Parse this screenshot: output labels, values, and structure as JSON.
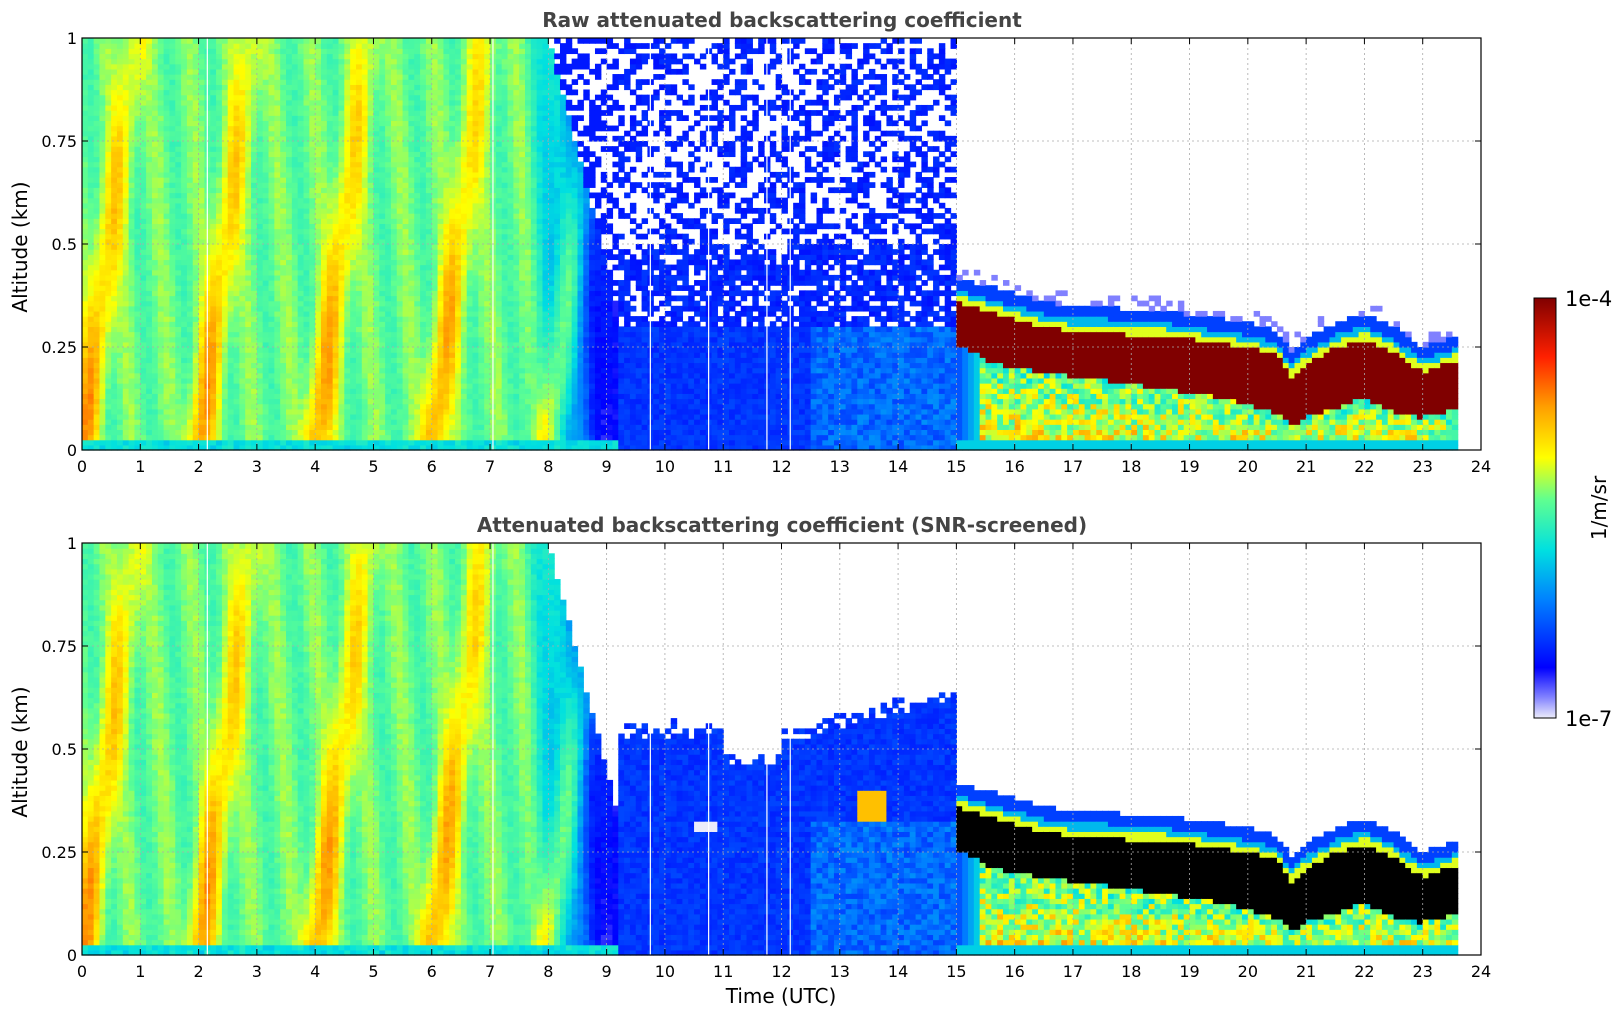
{
  "chart_data": [
    {
      "type": "heatmap",
      "title": "Raw attenuated backscattering coefficient",
      "xlabel": "",
      "ylabel": "Altitude (km)",
      "xlim": [
        0,
        24
      ],
      "ylim": [
        0,
        1
      ],
      "xticks": [
        "0",
        "1",
        "2",
        "3",
        "4",
        "5",
        "6",
        "7",
        "8",
        "9",
        "10",
        "11",
        "12",
        "13",
        "14",
        "15",
        "16",
        "17",
        "18",
        "19",
        "20",
        "21",
        "22",
        "23",
        "24"
      ],
      "yticks": [
        "0",
        "0.25",
        "0.5",
        "0.75",
        "1"
      ],
      "data_end_time": 23.6,
      "grid": true,
      "cloud_layer": {
        "times": [
          15,
          15.5,
          16,
          16.5,
          17,
          17.5,
          18,
          18.5,
          19,
          19.5,
          20,
          20.5,
          20.75,
          21,
          21.5,
          22,
          22.5,
          23,
          23.6
        ],
        "top_km": [
          0.39,
          0.37,
          0.35,
          0.33,
          0.32,
          0.32,
          0.31,
          0.31,
          0.3,
          0.29,
          0.28,
          0.26,
          0.21,
          0.24,
          0.28,
          0.3,
          0.27,
          0.22,
          0.25
        ],
        "base_km": [
          0.26,
          0.22,
          0.2,
          0.19,
          0.18,
          0.17,
          0.16,
          0.15,
          0.14,
          0.13,
          0.11,
          0.09,
          0.06,
          0.08,
          0.1,
          0.13,
          0.09,
          0.08,
          0.1
        ]
      }
    },
    {
      "type": "heatmap",
      "title": "Attenuated backscattering coefficient (SNR-screened)",
      "xlabel": "Time (UTC)",
      "ylabel": "Altitude (km)",
      "xlim": [
        0,
        24
      ],
      "ylim": [
        0,
        1
      ],
      "xticks": [
        "0",
        "1",
        "2",
        "3",
        "4",
        "5",
        "6",
        "7",
        "8",
        "9",
        "10",
        "11",
        "12",
        "13",
        "14",
        "15",
        "16",
        "17",
        "18",
        "19",
        "20",
        "21",
        "22",
        "23",
        "24"
      ],
      "yticks": [
        "0",
        "0.25",
        "0.5",
        "0.75",
        "1"
      ],
      "data_end_time": 23.6,
      "grid": true
    }
  ],
  "colorbar": {
    "label": "1/m/sr",
    "max_label": "1e-4",
    "min_label": "1e-7",
    "scale": "log",
    "range": [
      1e-07,
      0.0001
    ],
    "colors": [
      "#e8e8f8",
      "#0000ff",
      "#00c8ff",
      "#ffff00",
      "#ff8000",
      "#800000"
    ]
  }
}
